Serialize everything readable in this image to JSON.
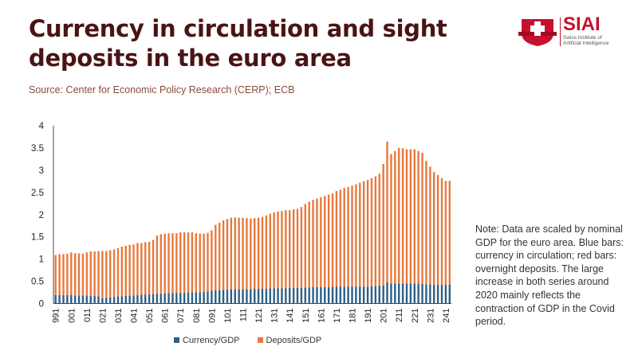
{
  "header": {
    "title_line1": "Currency in circulation and sight",
    "title_line2": "deposits in the euro area",
    "source": "Source: Center for Economic Policy Research (CERP); ECB"
  },
  "logo": {
    "name": "SIAI",
    "subtitle": "Swiss Institute of Artificial Intelligence"
  },
  "note": "Note: Data are scaled by nominal GDP for the euro area. Blue bars: currency in circulation; red bars: overnight deposits. The large increase in both series around 2020 mainly reflects the contraction of GDP in the Covid period.",
  "chart_data": {
    "type": "bar",
    "stacked": true,
    "title": "Currency in circulation and sight deposits in the euro area",
    "xlabel": "",
    "ylabel": "",
    "ylim": [
      0,
      4
    ],
    "yticks": [
      "0",
      "0.5",
      "1",
      "1.5",
      "2",
      "2.5",
      "3",
      "3.5",
      "4"
    ],
    "start": "1999Q1",
    "end": "2024Q2",
    "frequency": "quarterly",
    "x_ticks": [
      "991",
      "001",
      "011",
      "021",
      "031",
      "041",
      "051",
      "061",
      "071",
      "081",
      "091",
      "101",
      "111",
      "121",
      "131",
      "141",
      "151",
      "161",
      "171",
      "181",
      "191",
      "201",
      "211",
      "221",
      "231",
      "241"
    ],
    "legend_position": "bottom",
    "grid": false,
    "series": [
      {
        "name": "Currency/GDP",
        "color": "#2e5f86",
        "values": [
          0.19,
          0.19,
          0.19,
          0.19,
          0.19,
          0.18,
          0.18,
          0.18,
          0.18,
          0.17,
          0.17,
          0.16,
          0.12,
          0.13,
          0.14,
          0.15,
          0.16,
          0.16,
          0.17,
          0.17,
          0.18,
          0.19,
          0.2,
          0.2,
          0.21,
          0.21,
          0.22,
          0.22,
          0.23,
          0.23,
          0.24,
          0.24,
          0.24,
          0.24,
          0.25,
          0.25,
          0.25,
          0.25,
          0.26,
          0.27,
          0.29,
          0.3,
          0.3,
          0.31,
          0.31,
          0.32,
          0.32,
          0.32,
          0.32,
          0.32,
          0.32,
          0.33,
          0.33,
          0.33,
          0.33,
          0.34,
          0.34,
          0.34,
          0.34,
          0.34,
          0.35,
          0.35,
          0.35,
          0.35,
          0.36,
          0.36,
          0.37,
          0.37,
          0.37,
          0.37,
          0.37,
          0.38,
          0.38,
          0.38,
          0.38,
          0.38,
          0.38,
          0.38,
          0.38,
          0.38,
          0.38,
          0.39,
          0.39,
          0.4,
          0.41,
          0.48,
          0.45,
          0.45,
          0.45,
          0.45,
          0.45,
          0.45,
          0.45,
          0.45,
          0.44,
          0.43,
          0.43,
          0.42,
          0.42,
          0.42,
          0.42,
          0.42
        ]
      },
      {
        "name": "Deposits/GDP",
        "color": "#e8793e",
        "values": [
          0.9,
          0.92,
          0.92,
          0.93,
          0.96,
          0.95,
          0.95,
          0.94,
          0.97,
          1.0,
          1.0,
          1.02,
          1.06,
          1.05,
          1.06,
          1.07,
          1.09,
          1.12,
          1.13,
          1.15,
          1.15,
          1.17,
          1.16,
          1.18,
          1.18,
          1.22,
          1.31,
          1.34,
          1.34,
          1.35,
          1.34,
          1.34,
          1.36,
          1.36,
          1.35,
          1.35,
          1.33,
          1.32,
          1.31,
          1.32,
          1.36,
          1.47,
          1.52,
          1.56,
          1.59,
          1.61,
          1.62,
          1.61,
          1.61,
          1.6,
          1.59,
          1.59,
          1.6,
          1.62,
          1.65,
          1.68,
          1.71,
          1.73,
          1.74,
          1.76,
          1.75,
          1.77,
          1.78,
          1.82,
          1.88,
          1.93,
          1.96,
          1.99,
          2.02,
          2.05,
          2.08,
          2.1,
          2.15,
          2.18,
          2.22,
          2.24,
          2.27,
          2.3,
          2.34,
          2.37,
          2.4,
          2.43,
          2.47,
          2.52,
          2.73,
          3.16,
          2.91,
          2.98,
          3.05,
          3.04,
          3.02,
          3.02,
          3.02,
          2.98,
          2.95,
          2.78,
          2.65,
          2.54,
          2.47,
          2.4,
          2.34,
          2.34
        ]
      }
    ]
  }
}
